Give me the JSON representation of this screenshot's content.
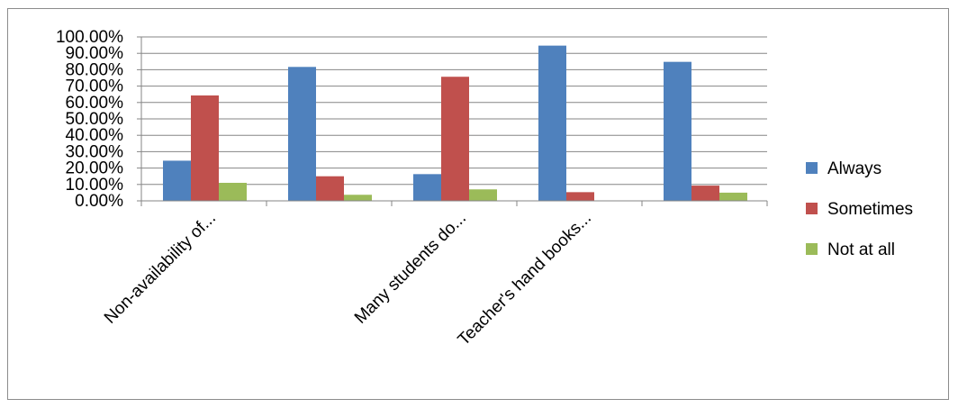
{
  "chart_data": {
    "type": "bar",
    "title": "",
    "xlabel": "",
    "ylabel": "",
    "categories": [
      "Non-availability of...",
      "",
      "Many students do...",
      "Teacher's hand books...",
      ""
    ],
    "series": [
      {
        "name": "Always",
        "color": "#4f81bd",
        "values": [
          24.5,
          81.7,
          16.3,
          94.7,
          84.8
        ]
      },
      {
        "name": "Sometimes",
        "color": "#c0504d",
        "values": [
          64.3,
          15.0,
          75.7,
          5.3,
          9.3
        ]
      },
      {
        "name": "Not at all",
        "color": "#9bbb59",
        "values": [
          11.0,
          3.7,
          7.0,
          0.0,
          5.0
        ]
      }
    ],
    "ylim": [
      0,
      100
    ],
    "yticks": [
      "0.00%",
      "10.00%",
      "20.00%",
      "30.00%",
      "40.00%",
      "50.00%",
      "60.00%",
      "70.00%",
      "80.00%",
      "90.00%",
      "100.00%"
    ],
    "grid": true,
    "legend_position": "right"
  }
}
